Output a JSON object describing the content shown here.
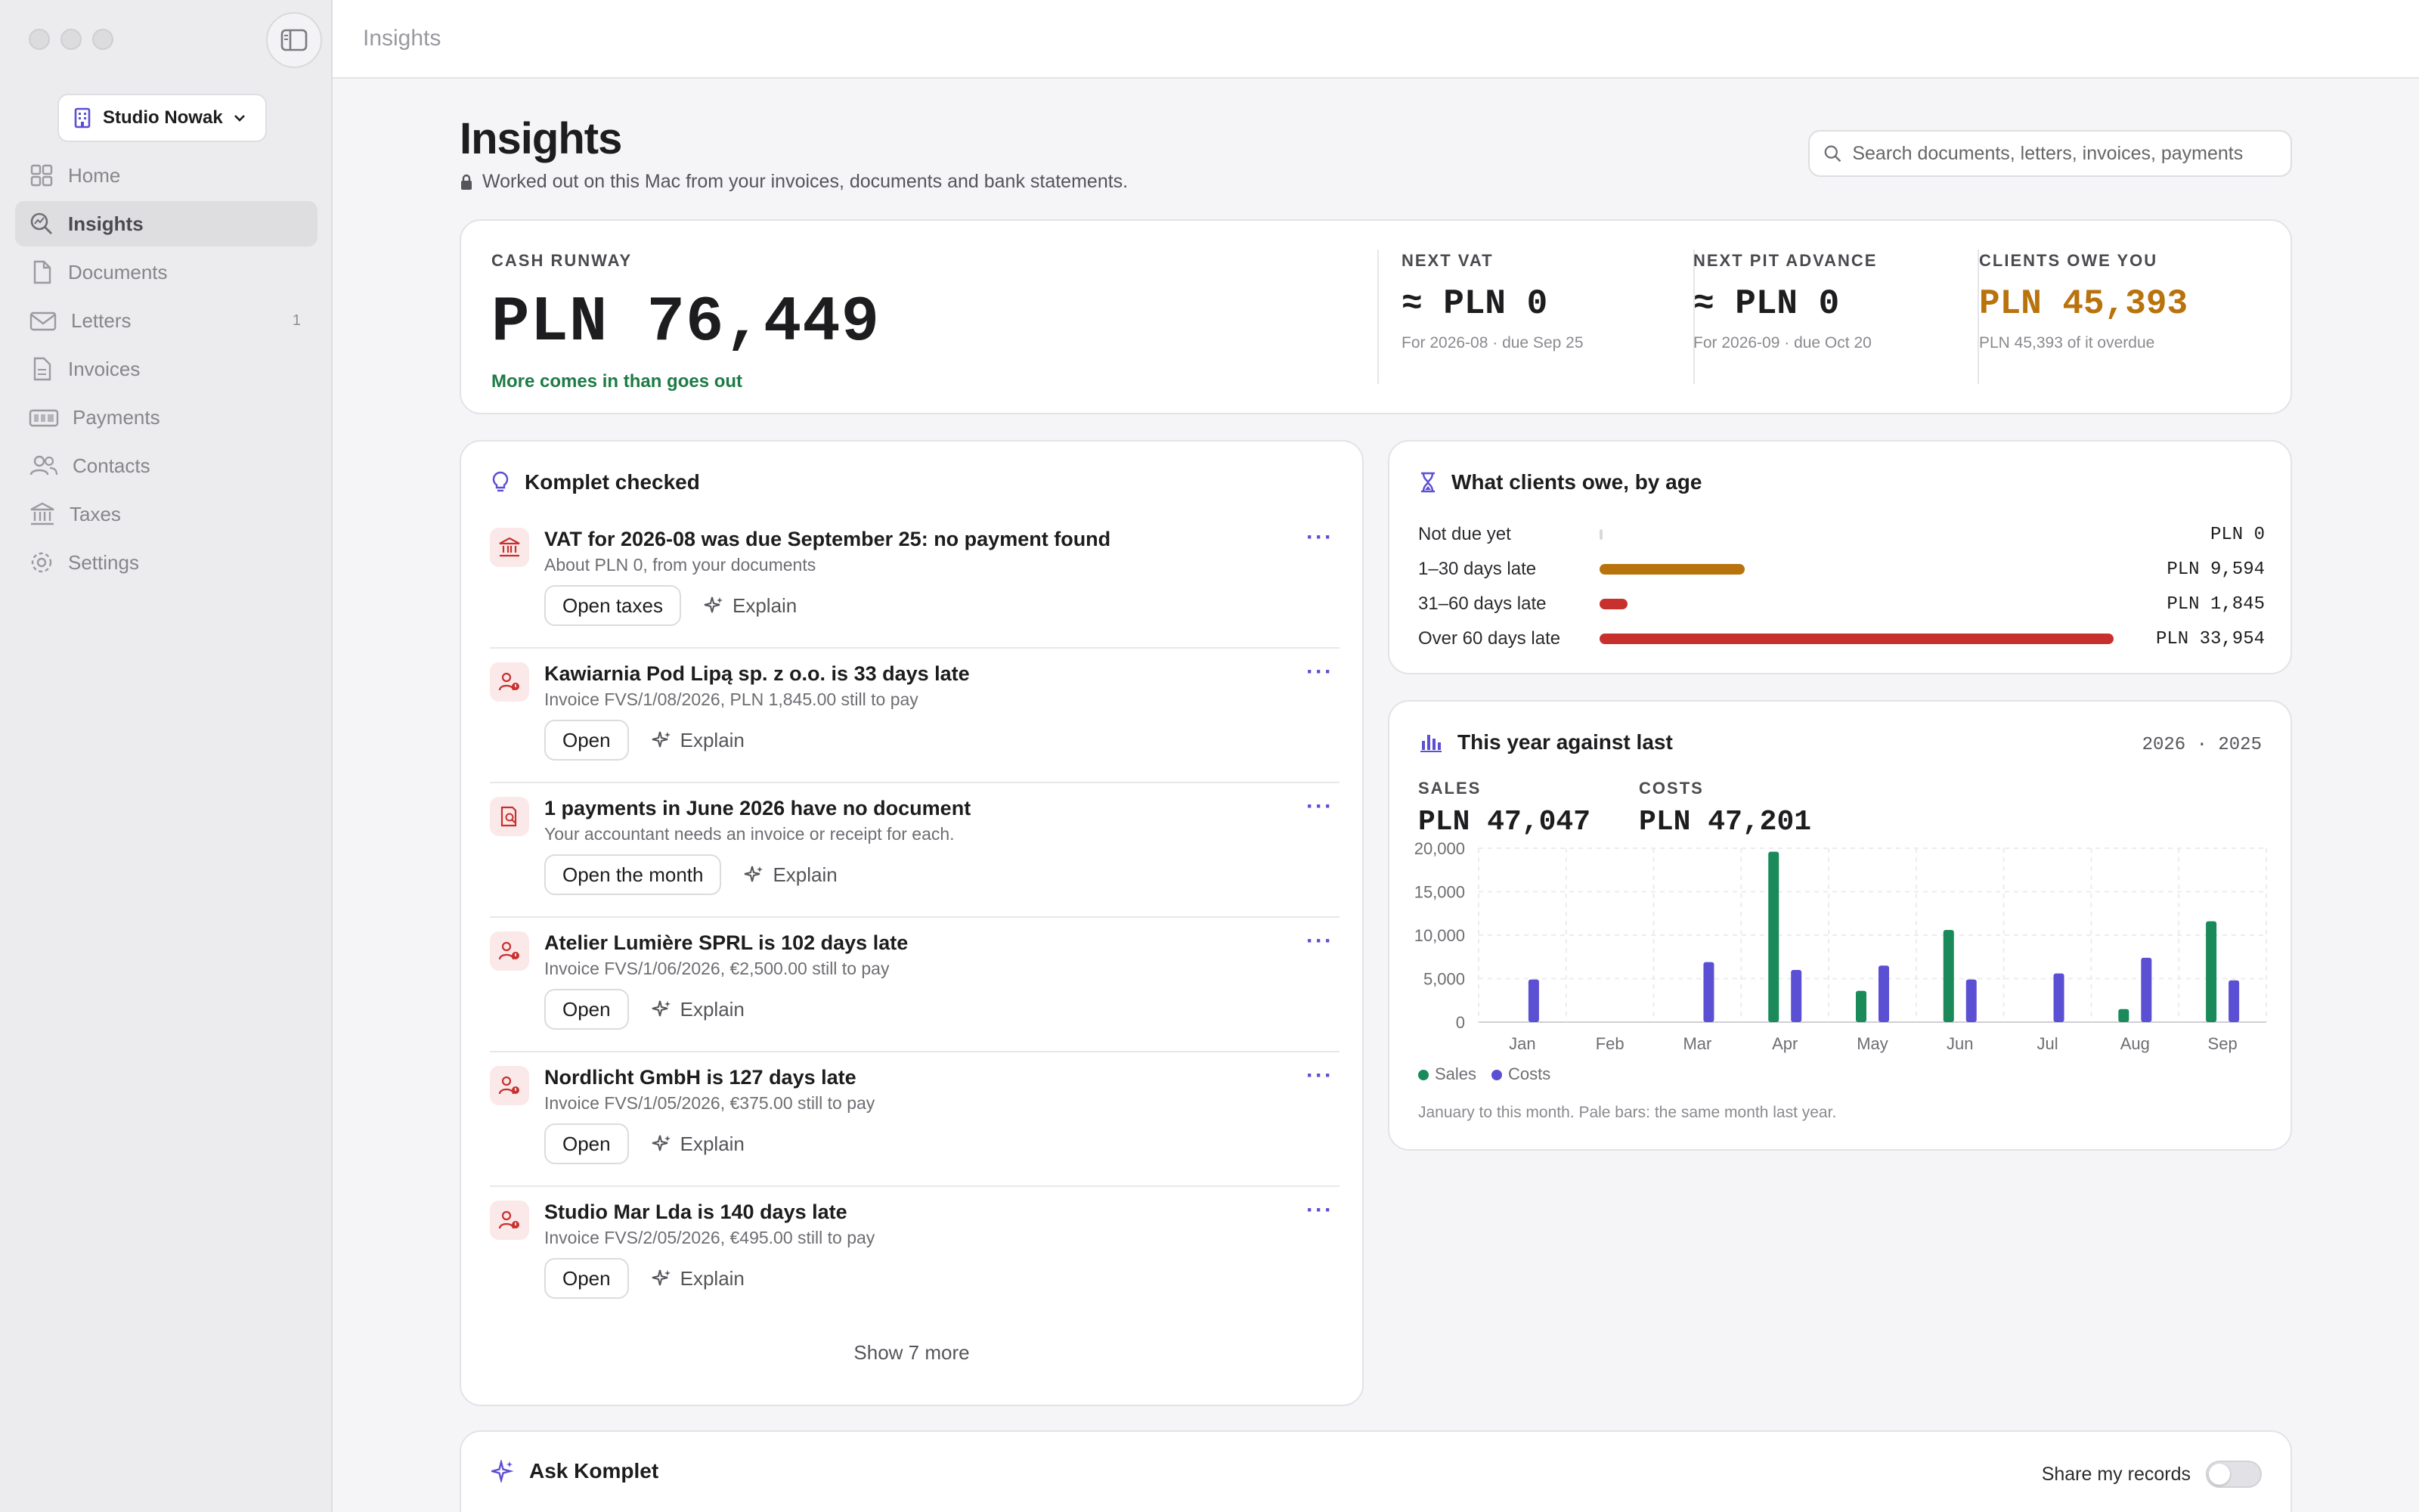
{
  "window": {
    "title": "Insights"
  },
  "sidebar": {
    "workspace": "Studio Nowak",
    "items": [
      {
        "label": "Home",
        "icon": "home-icon",
        "count": ""
      },
      {
        "label": "Insights",
        "icon": "insights-icon",
        "count": "",
        "active": true
      },
      {
        "label": "Documents",
        "icon": "document-icon",
        "count": ""
      },
      {
        "label": "Letters",
        "icon": "envelope-icon",
        "count": "1"
      },
      {
        "label": "Invoices",
        "icon": "invoice-icon",
        "count": ""
      },
      {
        "label": "Payments",
        "icon": "payments-icon",
        "count": ""
      },
      {
        "label": "Contacts",
        "icon": "contacts-icon",
        "count": ""
      },
      {
        "label": "Taxes",
        "icon": "bank-icon",
        "count": ""
      },
      {
        "label": "Settings",
        "icon": "gear-icon",
        "count": ""
      }
    ]
  },
  "header": {
    "title": "Insights",
    "subtitle": "Worked out on this Mac from your invoices, documents and bank statements.",
    "search_placeholder": "Search documents, letters, invoices, payments"
  },
  "cash": {
    "label": "CASH RUNWAY",
    "value": "PLN 76,449",
    "note": "More comes in than goes out",
    "kpis": [
      {
        "label": "NEXT VAT",
        "value": "≈ PLN 0",
        "sub": "For 2026-08 · due Sep 25"
      },
      {
        "label": "NEXT PIT ADVANCE",
        "value": "≈ PLN 0",
        "sub": "For 2026-09 · due Oct 20"
      },
      {
        "label": "CLIENTS OWE YOU",
        "value": "PLN 45,393",
        "sub": "PLN 45,393 of it overdue"
      }
    ]
  },
  "checked": {
    "title": "Komplet checked",
    "explain_label": "Explain",
    "more_label": "···",
    "issues": [
      {
        "title": "VAT for 2026-08 was due September 25: no payment found",
        "sub": "About PLN 0, from your documents",
        "action": "Open taxes",
        "icon": "bank-icon"
      },
      {
        "title": "Kawiarnia Pod Lipą sp. z o.o. is 33 days late",
        "sub": "Invoice FVS/1/08/2026, PLN 1,845.00 still to pay",
        "action": "Open",
        "icon": "person-alert-icon"
      },
      {
        "title": "1 payments in June 2026 have no document",
        "sub": "Your accountant needs an invoice or receipt for each.",
        "action": "Open the month",
        "icon": "receipt-search-icon"
      },
      {
        "title": "Atelier Lumière SPRL is 102 days late",
        "sub": "Invoice FVS/1/06/2026, €2,500.00 still to pay",
        "action": "Open",
        "icon": "person-alert-icon"
      },
      {
        "title": "Nordlicht GmbH is 127 days late",
        "sub": "Invoice FVS/1/05/2026, €375.00 still to pay",
        "action": "Open",
        "icon": "person-alert-icon"
      },
      {
        "title": "Studio Mar Lda is 140 days late",
        "sub": "Invoice FVS/2/05/2026, €495.00 still to pay",
        "action": "Open",
        "icon": "person-alert-icon"
      }
    ],
    "show_more": "Show 7 more"
  },
  "aging": {
    "title": "What clients owe, by age",
    "max": 33954,
    "rows": [
      {
        "label": "Not due yet",
        "amount": "PLN 0",
        "value": 0,
        "color": "#d9d9dd"
      },
      {
        "label": "1–30 days late",
        "amount": "PLN 9,594",
        "value": 9594,
        "color": "#b8730c"
      },
      {
        "label": "31–60 days late",
        "amount": "PLN 1,845",
        "value": 1845,
        "color": "#c8302e"
      },
      {
        "label": "Over 60 days late",
        "amount": "PLN 33,954",
        "value": 33954,
        "color": "#c8302e"
      }
    ]
  },
  "year": {
    "title": "This year against last",
    "years": "2026 · 2025",
    "sales_label": "SALES",
    "sales_value": "PLN 47,047",
    "costs_label": "COSTS",
    "costs_value": "PLN 47,201",
    "legend_sales": "Sales",
    "legend_costs": "Costs",
    "note": "January to this month. Pale bars: the same month last year."
  },
  "chart_data": {
    "type": "bar",
    "categories": [
      "Jan",
      "Feb",
      "Mar",
      "Apr",
      "May",
      "Jun",
      "Jul",
      "Aug",
      "Sep"
    ],
    "series": [
      {
        "name": "Sales",
        "color": "#1a8a5a",
        "values": [
          0,
          0,
          0,
          19600,
          3600,
          10600,
          0,
          1500,
          11600
        ]
      },
      {
        "name": "Costs",
        "color": "#5b4fd4",
        "values": [
          4900,
          0,
          6900,
          6000,
          6500,
          4900,
          5600,
          7400,
          4800
        ]
      }
    ],
    "yticks": [
      0,
      5000,
      10000,
      15000,
      20000
    ],
    "ylim": [
      0,
      20000
    ]
  },
  "ask": {
    "title": "Ask Komplet",
    "share_label": "Share my records"
  },
  "colors": {
    "accent": "#5b4fd4",
    "positive": "#1e7b45",
    "warning": "#b8730c",
    "danger": "#c8302e"
  }
}
